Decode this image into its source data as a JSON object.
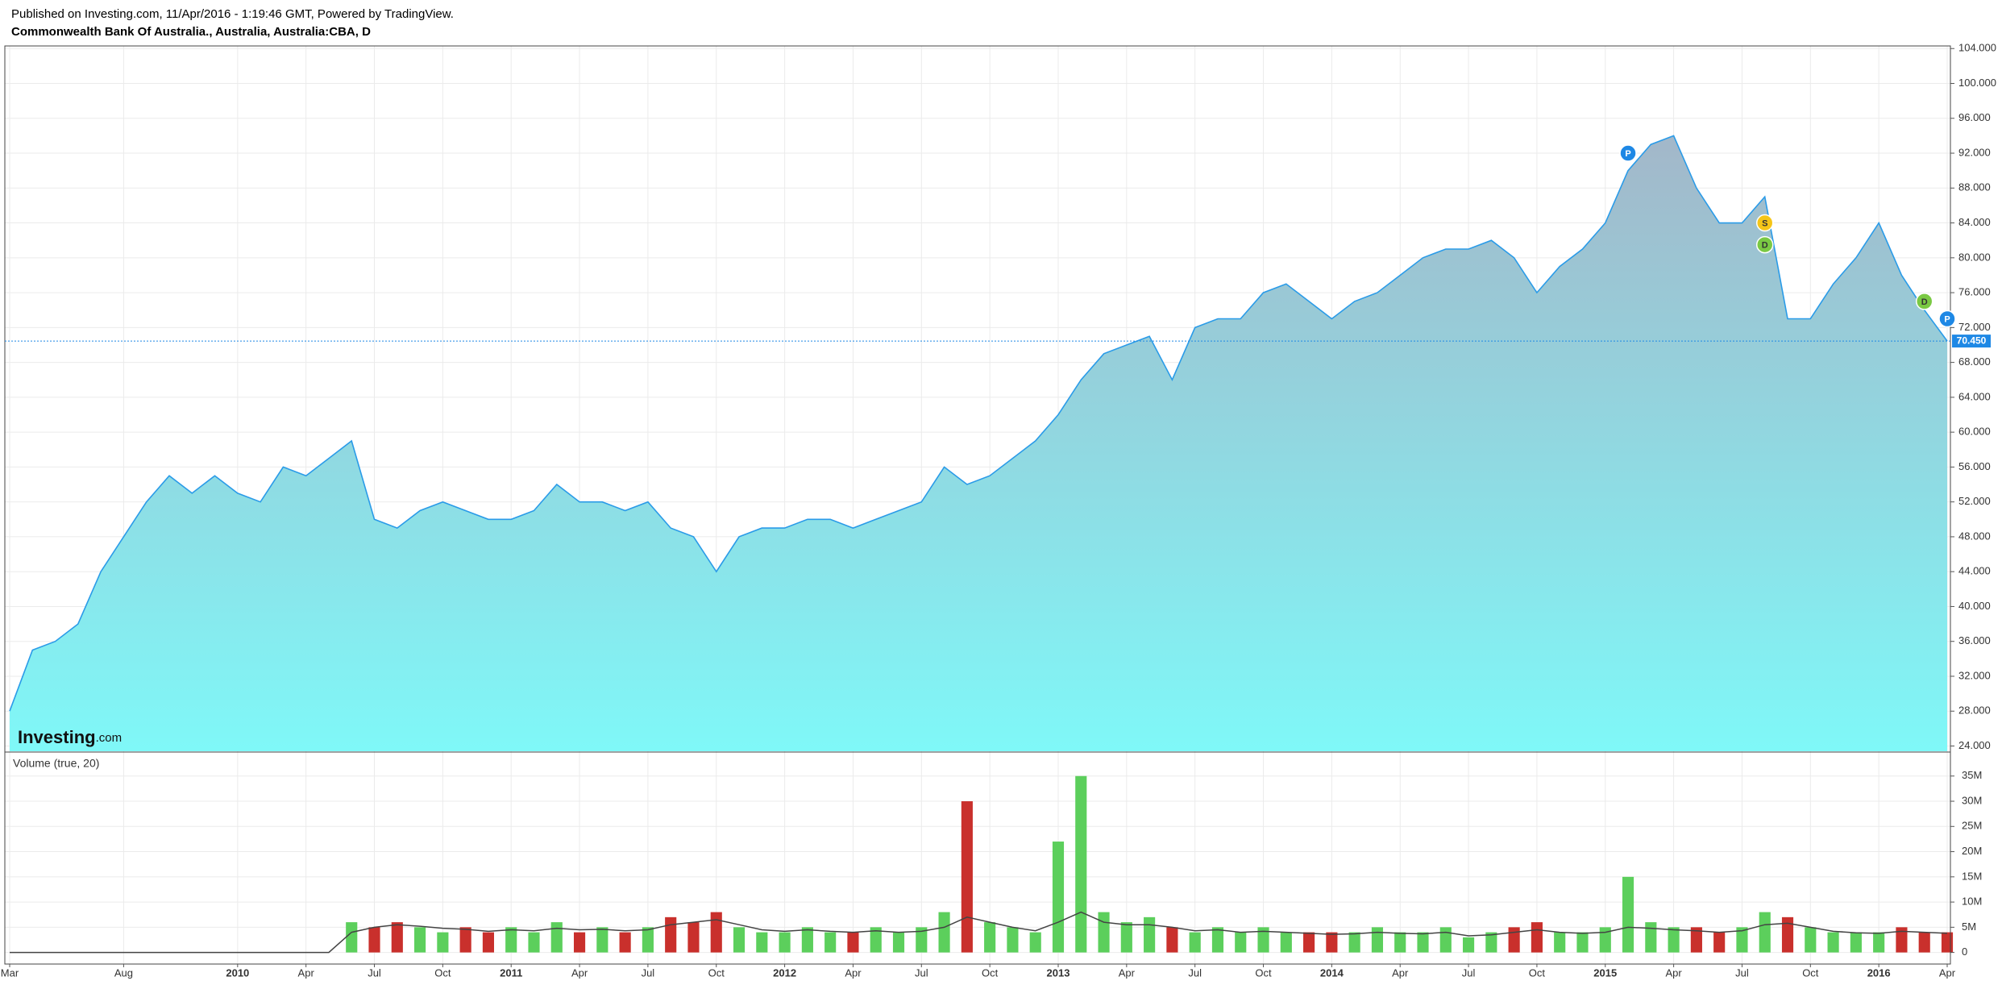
{
  "header": {
    "published": "Published on Investing.com, 11/Apr/2016 - 1:19:46 GMT, Powered by TradingView."
  },
  "watermark": {
    "brand": "Investing",
    "suffix": ".com"
  },
  "chart_data": {
    "type": "area",
    "title": "Commonwealth Bank Of Australia., Australia, Australia:CBA, D",
    "color": "#2a9be8",
    "fill_top": "#a3b7c9",
    "fill_bottom": "#7ff8f8",
    "grid": true,
    "categories": [
      "Mar",
      null,
      null,
      null,
      null,
      "Aug",
      null,
      null,
      null,
      null,
      "2010",
      null,
      null,
      "Apr",
      null,
      null,
      "Jul",
      null,
      null,
      "Oct",
      null,
      null,
      "2011",
      null,
      null,
      "Apr",
      null,
      null,
      "Jul",
      null,
      null,
      "Oct",
      null,
      null,
      "2012",
      null,
      null,
      "Apr",
      null,
      null,
      "Jul",
      null,
      null,
      "Oct",
      null,
      null,
      "2013",
      null,
      null,
      "Apr",
      null,
      null,
      "Jul",
      null,
      null,
      "Oct",
      null,
      null,
      "2014",
      null,
      null,
      "Apr",
      null,
      null,
      "Jul",
      null,
      null,
      "Oct",
      null,
      null,
      "2015",
      null,
      null,
      "Apr",
      null,
      null,
      "Jul",
      null,
      null,
      "Oct",
      null,
      null,
      "2016",
      null,
      null,
      "Apr"
    ],
    "values": [
      28,
      35,
      36,
      38,
      44,
      48,
      52,
      55,
      53,
      55,
      53,
      52,
      56,
      55,
      57,
      59,
      50,
      49,
      51,
      52,
      51,
      50,
      50,
      51,
      54,
      52,
      52,
      51,
      52,
      49,
      48,
      44,
      48,
      49,
      49,
      50,
      50,
      49,
      50,
      51,
      52,
      56,
      54,
      55,
      57,
      59,
      62,
      66,
      69,
      70,
      71,
      66,
      72,
      73,
      73,
      76,
      77,
      75,
      73,
      75,
      76,
      78,
      80,
      81,
      81,
      82,
      80,
      76,
      79,
      81,
      84,
      90,
      93,
      94,
      88,
      84,
      84,
      87,
      73,
      73,
      77,
      80,
      84,
      78,
      74,
      70.45
    ],
    "ylim": [
      23.4,
      104.3
    ],
    "yticks": [
      {
        "value": 24,
        "label": "24.000"
      },
      {
        "value": 28,
        "label": "28.000"
      },
      {
        "value": 32,
        "label": "32.000"
      },
      {
        "value": 36,
        "label": "36.000"
      },
      {
        "value": 40,
        "label": "40.000"
      },
      {
        "value": 44,
        "label": "44.000"
      },
      {
        "value": 48,
        "label": "48.000"
      },
      {
        "value": 52,
        "label": "52.000"
      },
      {
        "value": 56,
        "label": "56.000"
      },
      {
        "value": 60,
        "label": "60.000"
      },
      {
        "value": 64,
        "label": "64.000"
      },
      {
        "value": 68,
        "label": "68.000"
      },
      {
        "value": 72,
        "label": "72.000"
      },
      {
        "value": 76,
        "label": "76.000"
      },
      {
        "value": 80,
        "label": "80.000"
      },
      {
        "value": 84,
        "label": "84.000"
      },
      {
        "value": 88,
        "label": "88.000"
      },
      {
        "value": 92,
        "label": "92.000"
      },
      {
        "value": 96,
        "label": "96.000"
      },
      {
        "value": 100,
        "label": "100.000"
      },
      {
        "value": 104,
        "label": "104.000"
      }
    ],
    "last_price": {
      "value": 70.45,
      "label": "70.450",
      "color": "#1e88e5"
    },
    "events": [
      {
        "label": "P",
        "category_index": 71,
        "value": 92,
        "color": "#1e88e5"
      },
      {
        "label": "S",
        "category_index": 77,
        "value": 84,
        "color": "#f5c518"
      },
      {
        "label": "D",
        "category_index": 77,
        "value": 81.5,
        "color": "#7ac943"
      },
      {
        "label": "D",
        "category_index": 84,
        "value": 75,
        "color": "#7ac943"
      },
      {
        "label": "P",
        "category_index": 85,
        "value": 73,
        "color": "#1e88e5"
      }
    ],
    "volume": {
      "type": "bar",
      "title": "Volume (true, 20)",
      "up_color": "#5ccf5c",
      "down_color": "#c9302c",
      "ma_color": "#444444",
      "values": [
        0,
        0,
        0,
        0,
        0,
        0,
        0,
        0,
        0,
        0,
        0,
        0,
        0,
        0,
        0,
        6000000,
        5000000,
        6000000,
        5000000,
        4000000,
        5000000,
        4000000,
        5000000,
        4000000,
        6000000,
        4000000,
        5000000,
        4000000,
        5000000,
        7000000,
        6000000,
        8000000,
        5000000,
        4000000,
        4000000,
        5000000,
        4000000,
        4000000,
        5000000,
        4000000,
        5000000,
        8000000,
        30000000,
        6000000,
        5000000,
        4000000,
        22000000,
        35000000,
        8000000,
        6000000,
        7000000,
        5000000,
        4000000,
        5000000,
        4000000,
        5000000,
        4000000,
        4000000,
        4000000,
        4000000,
        5000000,
        4000000,
        4000000,
        5000000,
        3000000,
        4000000,
        5000000,
        6000000,
        4000000,
        4000000,
        5000000,
        15000000,
        6000000,
        5000000,
        5000000,
        4000000,
        5000000,
        8000000,
        7000000,
        5000000,
        4000000,
        4000000,
        4000000,
        5000000,
        4000000,
        4000000
      ],
      "ma": [
        0,
        0,
        0,
        0,
        0,
        0,
        0,
        0,
        0,
        0,
        0,
        0,
        0,
        0,
        0,
        4000000,
        5000000,
        5500000,
        5200000,
        4800000,
        4600000,
        4200000,
        4500000,
        4300000,
        4800000,
        4500000,
        4600000,
        4300000,
        4500000,
        5500000,
        6000000,
        6500000,
        5500000,
        4500000,
        4200000,
        4500000,
        4200000,
        4000000,
        4300000,
        4000000,
        4200000,
        5000000,
        7000000,
        6000000,
        5000000,
        4300000,
        6000000,
        8000000,
        6000000,
        5500000,
        5500000,
        5000000,
        4300000,
        4500000,
        4000000,
        4200000,
        4000000,
        3800000,
        3600000,
        3700000,
        4000000,
        3800000,
        3700000,
        4000000,
        3300000,
        3500000,
        4000000,
        4500000,
        4000000,
        3800000,
        4000000,
        5000000,
        4800000,
        4500000,
        4300000,
        4000000,
        4300000,
        5500000,
        5800000,
        5000000,
        4200000,
        3900000,
        3800000,
        4200000,
        4000000,
        3800000
      ],
      "ylim": [
        -2300000,
        39600000
      ],
      "yticks": [
        0,
        {
          "value": 5000000,
          "label": "5M"
        },
        {
          "value": 10000000,
          "label": "10M"
        },
        {
          "value": 15000000,
          "label": "15M"
        },
        {
          "value": 20000000,
          "label": "20M"
        },
        {
          "value": 25000000,
          "label": "25M"
        },
        {
          "value": 30000000,
          "label": "30M"
        },
        {
          "value": 35000000,
          "label": "35M"
        }
      ]
    }
  }
}
